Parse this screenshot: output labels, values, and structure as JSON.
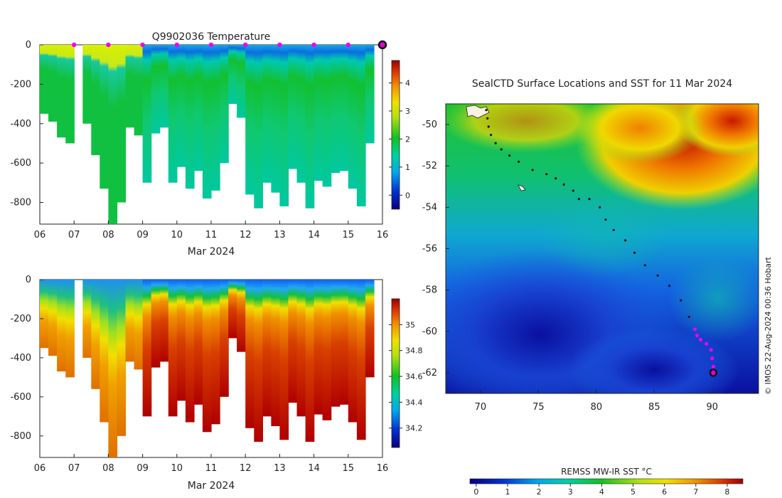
{
  "chart_data": [
    {
      "type": "heatmap",
      "title": "Q9902036  Temperature",
      "xlabel": "Mar 2024",
      "ylabel": "",
      "x_ticks": [
        "06",
        "07",
        "08",
        "09",
        "10",
        "11",
        "12",
        "13",
        "14",
        "15",
        "16"
      ],
      "y_ticks": [
        "0",
        "-200",
        "-400",
        "-600",
        "-800"
      ],
      "ylim": [
        -910,
        0
      ],
      "colorbar_ticks": [
        "0",
        "1",
        "2",
        "3",
        "4"
      ],
      "colorbar_range": [
        -0.5,
        4.8
      ],
      "profiles": [
        {
          "day": 6.0,
          "depth": 350
        },
        {
          "day": 6.25,
          "depth": 390
        },
        {
          "day": 6.5,
          "depth": 470
        },
        {
          "day": 6.75,
          "depth": 500
        },
        {
          "day": 7.25,
          "depth": 400
        },
        {
          "day": 7.5,
          "depth": 560
        },
        {
          "day": 7.75,
          "depth": 730
        },
        {
          "day": 8.0,
          "depth": 910
        },
        {
          "day": 8.25,
          "depth": 800
        },
        {
          "day": 8.5,
          "depth": 420
        },
        {
          "day": 8.75,
          "depth": 460
        },
        {
          "day": 9.0,
          "depth": 700
        },
        {
          "day": 9.25,
          "depth": 450
        },
        {
          "day": 9.5,
          "depth": 420
        },
        {
          "day": 9.75,
          "depth": 700
        },
        {
          "day": 10.0,
          "depth": 620
        },
        {
          "day": 10.25,
          "depth": 730
        },
        {
          "day": 10.5,
          "depth": 640
        },
        {
          "day": 10.75,
          "depth": 780
        },
        {
          "day": 11.0,
          "depth": 740
        },
        {
          "day": 11.25,
          "depth": 600
        },
        {
          "day": 11.5,
          "depth": 300
        },
        {
          "day": 11.75,
          "depth": 370
        },
        {
          "day": 12.0,
          "depth": 760
        },
        {
          "day": 12.25,
          "depth": 830
        },
        {
          "day": 12.5,
          "depth": 700
        },
        {
          "day": 12.75,
          "depth": 750
        },
        {
          "day": 13.0,
          "depth": 820
        },
        {
          "day": 13.25,
          "depth": 630
        },
        {
          "day": 13.5,
          "depth": 700
        },
        {
          "day": 13.75,
          "depth": 830
        },
        {
          "day": 14.0,
          "depth": 690
        },
        {
          "day": 14.25,
          "depth": 720
        },
        {
          "day": 14.5,
          "depth": 650
        },
        {
          "day": 14.75,
          "depth": 640
        },
        {
          "day": 15.0,
          "depth": 730
        },
        {
          "day": 15.25,
          "depth": 820
        },
        {
          "day": 15.5,
          "depth": 500
        }
      ],
      "daily_markers": [
        7,
        8,
        9,
        10,
        11,
        12,
        13,
        14,
        15
      ],
      "current_marker_day": 16
    },
    {
      "type": "heatmap",
      "title": "",
      "xlabel": "Mar 2024",
      "ylabel": "",
      "x_ticks": [
        "06",
        "07",
        "08",
        "09",
        "10",
        "11",
        "12",
        "13",
        "14",
        "15",
        "16"
      ],
      "y_ticks": [
        "0",
        "-200",
        "-400",
        "-600",
        "-800"
      ],
      "ylim": [
        -910,
        0
      ],
      "colorbar_ticks": [
        "34.2",
        "34.4",
        "34.6",
        "34.8",
        "35"
      ],
      "colorbar_range": [
        34.05,
        35.2
      ]
    },
    {
      "type": "heatmap",
      "title": "SealCTD Surface Locations and SST for 11 Mar 2024",
      "xlabel": "",
      "ylabel": "",
      "x_ticks": [
        "70",
        "75",
        "80",
        "85",
        "90"
      ],
      "y_ticks": [
        "-50",
        "-52",
        "-54",
        "-56",
        "-58",
        "-60",
        "-62"
      ],
      "xlim": [
        67,
        94
      ],
      "ylim": [
        -63,
        -49
      ],
      "colorbar_label": "REMSS MW-IR SST °C",
      "colorbar_ticks": [
        "0",
        "1",
        "2",
        "3",
        "4",
        "5",
        "6",
        "7",
        "8"
      ],
      "colorbar_range": [
        -0.2,
        8.5
      ],
      "track": [
        [
          70.5,
          -49.3
        ],
        [
          70.6,
          -49.7
        ],
        [
          70.7,
          -50.1
        ],
        [
          70.9,
          -50.5
        ],
        [
          71.3,
          -50.9
        ],
        [
          71.8,
          -51.2
        ],
        [
          72.5,
          -51.5
        ],
        [
          73.3,
          -51.8
        ],
        [
          74.5,
          -52.2
        ],
        [
          75.7,
          -52.4
        ],
        [
          76.5,
          -52.6
        ],
        [
          77.2,
          -52.9
        ],
        [
          78.0,
          -53.2
        ],
        [
          78.5,
          -53.6
        ],
        [
          79.4,
          -53.6
        ],
        [
          80.3,
          -54.0
        ],
        [
          80.8,
          -54.6
        ],
        [
          81.5,
          -55.1
        ],
        [
          82.5,
          -55.6
        ],
        [
          83.3,
          -56.2
        ],
        [
          84.2,
          -56.8
        ],
        [
          85.3,
          -57.3
        ],
        [
          86.3,
          -57.8
        ],
        [
          87.3,
          -58.5
        ],
        [
          88.0,
          -59.3
        ],
        [
          88.5,
          -59.9
        ]
      ],
      "recent_track": [
        [
          88.5,
          -59.9
        ],
        [
          88.7,
          -60.2
        ],
        [
          89.0,
          -60.4
        ],
        [
          89.5,
          -60.6
        ],
        [
          89.9,
          -60.9
        ],
        [
          90.0,
          -61.3
        ],
        [
          90.1,
          -61.7
        ],
        [
          90.1,
          -62.0
        ]
      ],
      "current_position": [
        90.1,
        -62.0
      ],
      "credit": "© IMOS 22-Aug-2024 00:36 Hobart"
    }
  ]
}
